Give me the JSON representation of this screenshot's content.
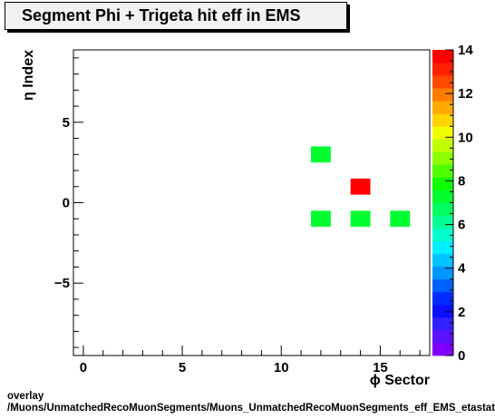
{
  "chart_data": {
    "type": "heatmap",
    "title": "Segment Phi + Trigeta hit eff in EMS",
    "xlabel": "ϕ Sector",
    "ylabel": "η Index",
    "xlim": [
      -0.5,
      17.5
    ],
    "ylim": [
      -9.5,
      9.5
    ],
    "x_ticks": [
      0,
      5,
      10,
      15
    ],
    "y_ticks": [
      -5,
      0,
      5
    ],
    "bin_width": 1,
    "cells": [
      {
        "x": 12,
        "y": 3,
        "value": 7
      },
      {
        "x": 14,
        "y": 1,
        "value": 14
      },
      {
        "x": 12,
        "y": -1,
        "value": 7
      },
      {
        "x": 14,
        "y": -1,
        "value": 7
      },
      {
        "x": 16,
        "y": -1,
        "value": 7
      }
    ],
    "colorbar": {
      "min": 0,
      "max": 14,
      "ticks": [
        0,
        2,
        4,
        6,
        8,
        10,
        12,
        14
      ],
      "palette": [
        "#7f00ff",
        "#5a12ff",
        "#3320ff",
        "#0a10ff",
        "#002cff",
        "#005fff",
        "#0096ff",
        "#00c3ff",
        "#00eeff",
        "#00ffcc",
        "#00ff96",
        "#00ff60",
        "#00ff30",
        "#10ff00",
        "#50ff00",
        "#8cff00",
        "#c0ff00",
        "#f0ff00",
        "#ffd400",
        "#ffa800",
        "#ff7c00",
        "#ff4a00",
        "#ff2000",
        "#ff0000"
      ]
    },
    "grid": false
  },
  "footer": {
    "line1": "overlay",
    "line2": "/Muons/UnmatchedRecoMuonSegments/Muons_UnmatchedRecoMuonSegments_eff_EMS_etastation_phiTrigeta_phisector"
  }
}
